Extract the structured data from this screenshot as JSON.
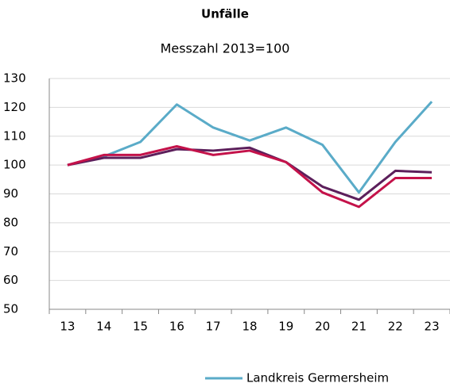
{
  "chart_data": {
    "type": "line",
    "title": "Unfälle",
    "subtitle": "Messzahl 2013=100",
    "categories": [
      "13",
      "14",
      "15",
      "16",
      "17",
      "18",
      "19",
      "20",
      "21",
      "22",
      "23"
    ],
    "series": [
      {
        "name": "Landkreis Germersheim",
        "color": "#5aabc8",
        "values": [
          100,
          103,
          108,
          121,
          113,
          108.5,
          113,
          107,
          90.5,
          108,
          122
        ]
      },
      {
        "color": "#5c1f5b",
        "values": [
          100,
          102.5,
          102.5,
          105.5,
          105,
          106,
          101,
          92.5,
          88,
          98,
          97.5
        ]
      },
      {
        "color": "#c4124a",
        "values": [
          100,
          103.5,
          103.5,
          106.5,
          103.5,
          105,
          101,
          90.5,
          85.5,
          95.5,
          95.5
        ]
      }
    ],
    "ylim": [
      50,
      130
    ],
    "yticks": [
      50,
      60,
      70,
      80,
      90,
      100,
      110,
      120,
      130
    ],
    "grid": true
  }
}
